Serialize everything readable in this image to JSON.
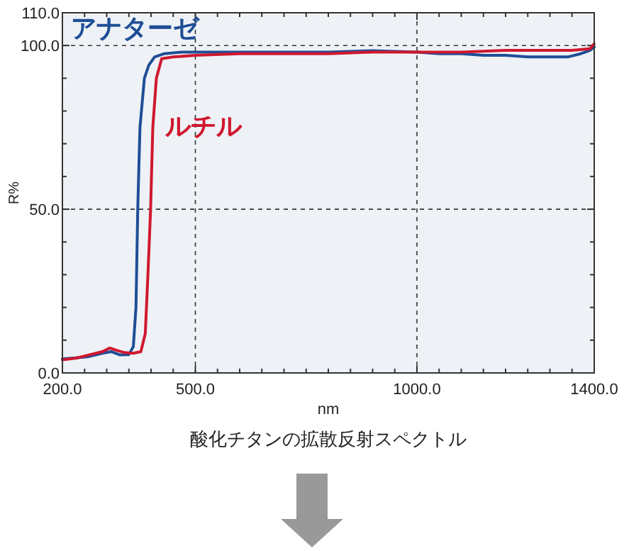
{
  "chart_data": {
    "type": "line",
    "xlabel": "nm",
    "ylabel": "R%",
    "annotations": [
      "酸化チタンの拡散反射スペクトル"
    ],
    "xlim": [
      200,
      1400
    ],
    "ylim": [
      0,
      110
    ],
    "xticks": [
      {
        "value": 200,
        "label": "200.0"
      },
      {
        "value": 250,
        "label": null
      },
      {
        "value": 300,
        "label": null
      },
      {
        "value": 350,
        "label": null
      },
      {
        "value": 400,
        "label": null
      },
      {
        "value": 450,
        "label": null
      },
      {
        "value": 500,
        "label": "500.0"
      },
      {
        "value": 550,
        "label": null
      },
      {
        "value": 600,
        "label": null
      },
      {
        "value": 650,
        "label": null
      },
      {
        "value": 700,
        "label": null
      },
      {
        "value": 750,
        "label": null
      },
      {
        "value": 800,
        "label": null
      },
      {
        "value": 850,
        "label": null
      },
      {
        "value": 900,
        "label": null
      },
      {
        "value": 950,
        "label": null
      },
      {
        "value": 1000,
        "label": "1000.0"
      },
      {
        "value": 1050,
        "label": null
      },
      {
        "value": 1100,
        "label": null
      },
      {
        "value": 1150,
        "label": null
      },
      {
        "value": 1200,
        "label": null
      },
      {
        "value": 1250,
        "label": null
      },
      {
        "value": 1300,
        "label": null
      },
      {
        "value": 1350,
        "label": null
      },
      {
        "value": 1400,
        "label": "1400.0"
      }
    ],
    "yticks": [
      {
        "value": 0,
        "label": "0.0"
      },
      {
        "value": 10,
        "label": null
      },
      {
        "value": 20,
        "label": null
      },
      {
        "value": 30,
        "label": null
      },
      {
        "value": 40,
        "label": null
      },
      {
        "value": 50,
        "label": "50.0"
      },
      {
        "value": 60,
        "label": null
      },
      {
        "value": 70,
        "label": null
      },
      {
        "value": 80,
        "label": null
      },
      {
        "value": 90,
        "label": null
      },
      {
        "value": 100,
        "label": "100.0"
      },
      {
        "value": 110,
        "label": "110.0"
      }
    ],
    "grid": true,
    "line_style": "solid",
    "series": [
      {
        "name": "アナターゼ",
        "color": "#1f4e96",
        "x": [
          200,
          230,
          260,
          290,
          310,
          330,
          350,
          360,
          366,
          370,
          375,
          385,
          395,
          408,
          430,
          470,
          500,
          600,
          700,
          800,
          900,
          1000,
          1050,
          1100,
          1150,
          1200,
          1250,
          1300,
          1340,
          1370,
          1390,
          1400
        ],
        "values": [
          4.3,
          4.6,
          5,
          6,
          6.5,
          5.5,
          5.6,
          8,
          20,
          50,
          75,
          90,
          94,
          96.5,
          97.5,
          98,
          98,
          98,
          98,
          98,
          98.4,
          98,
          97.5,
          97.5,
          97,
          97,
          96.5,
          96.5,
          96.5,
          97.5,
          98.5,
          99.5
        ]
      },
      {
        "name": "ルチル",
        "color": "#d0182f",
        "x": [
          200,
          230,
          260,
          290,
          307,
          320,
          340,
          360,
          377,
          387,
          393,
          399,
          404,
          412,
          424,
          450,
          500,
          600,
          700,
          800,
          900,
          1000,
          1100,
          1200,
          1300,
          1350,
          1390,
          1400
        ],
        "values": [
          4,
          4.5,
          5.5,
          6.5,
          7.6,
          7,
          6.2,
          6,
          6.5,
          12,
          30,
          50,
          75,
          90,
          96,
          96.5,
          97,
          97.5,
          97.5,
          97.5,
          98,
          98,
          98,
          98.5,
          98.5,
          98.5,
          99,
          100.5
        ]
      }
    ]
  }
}
